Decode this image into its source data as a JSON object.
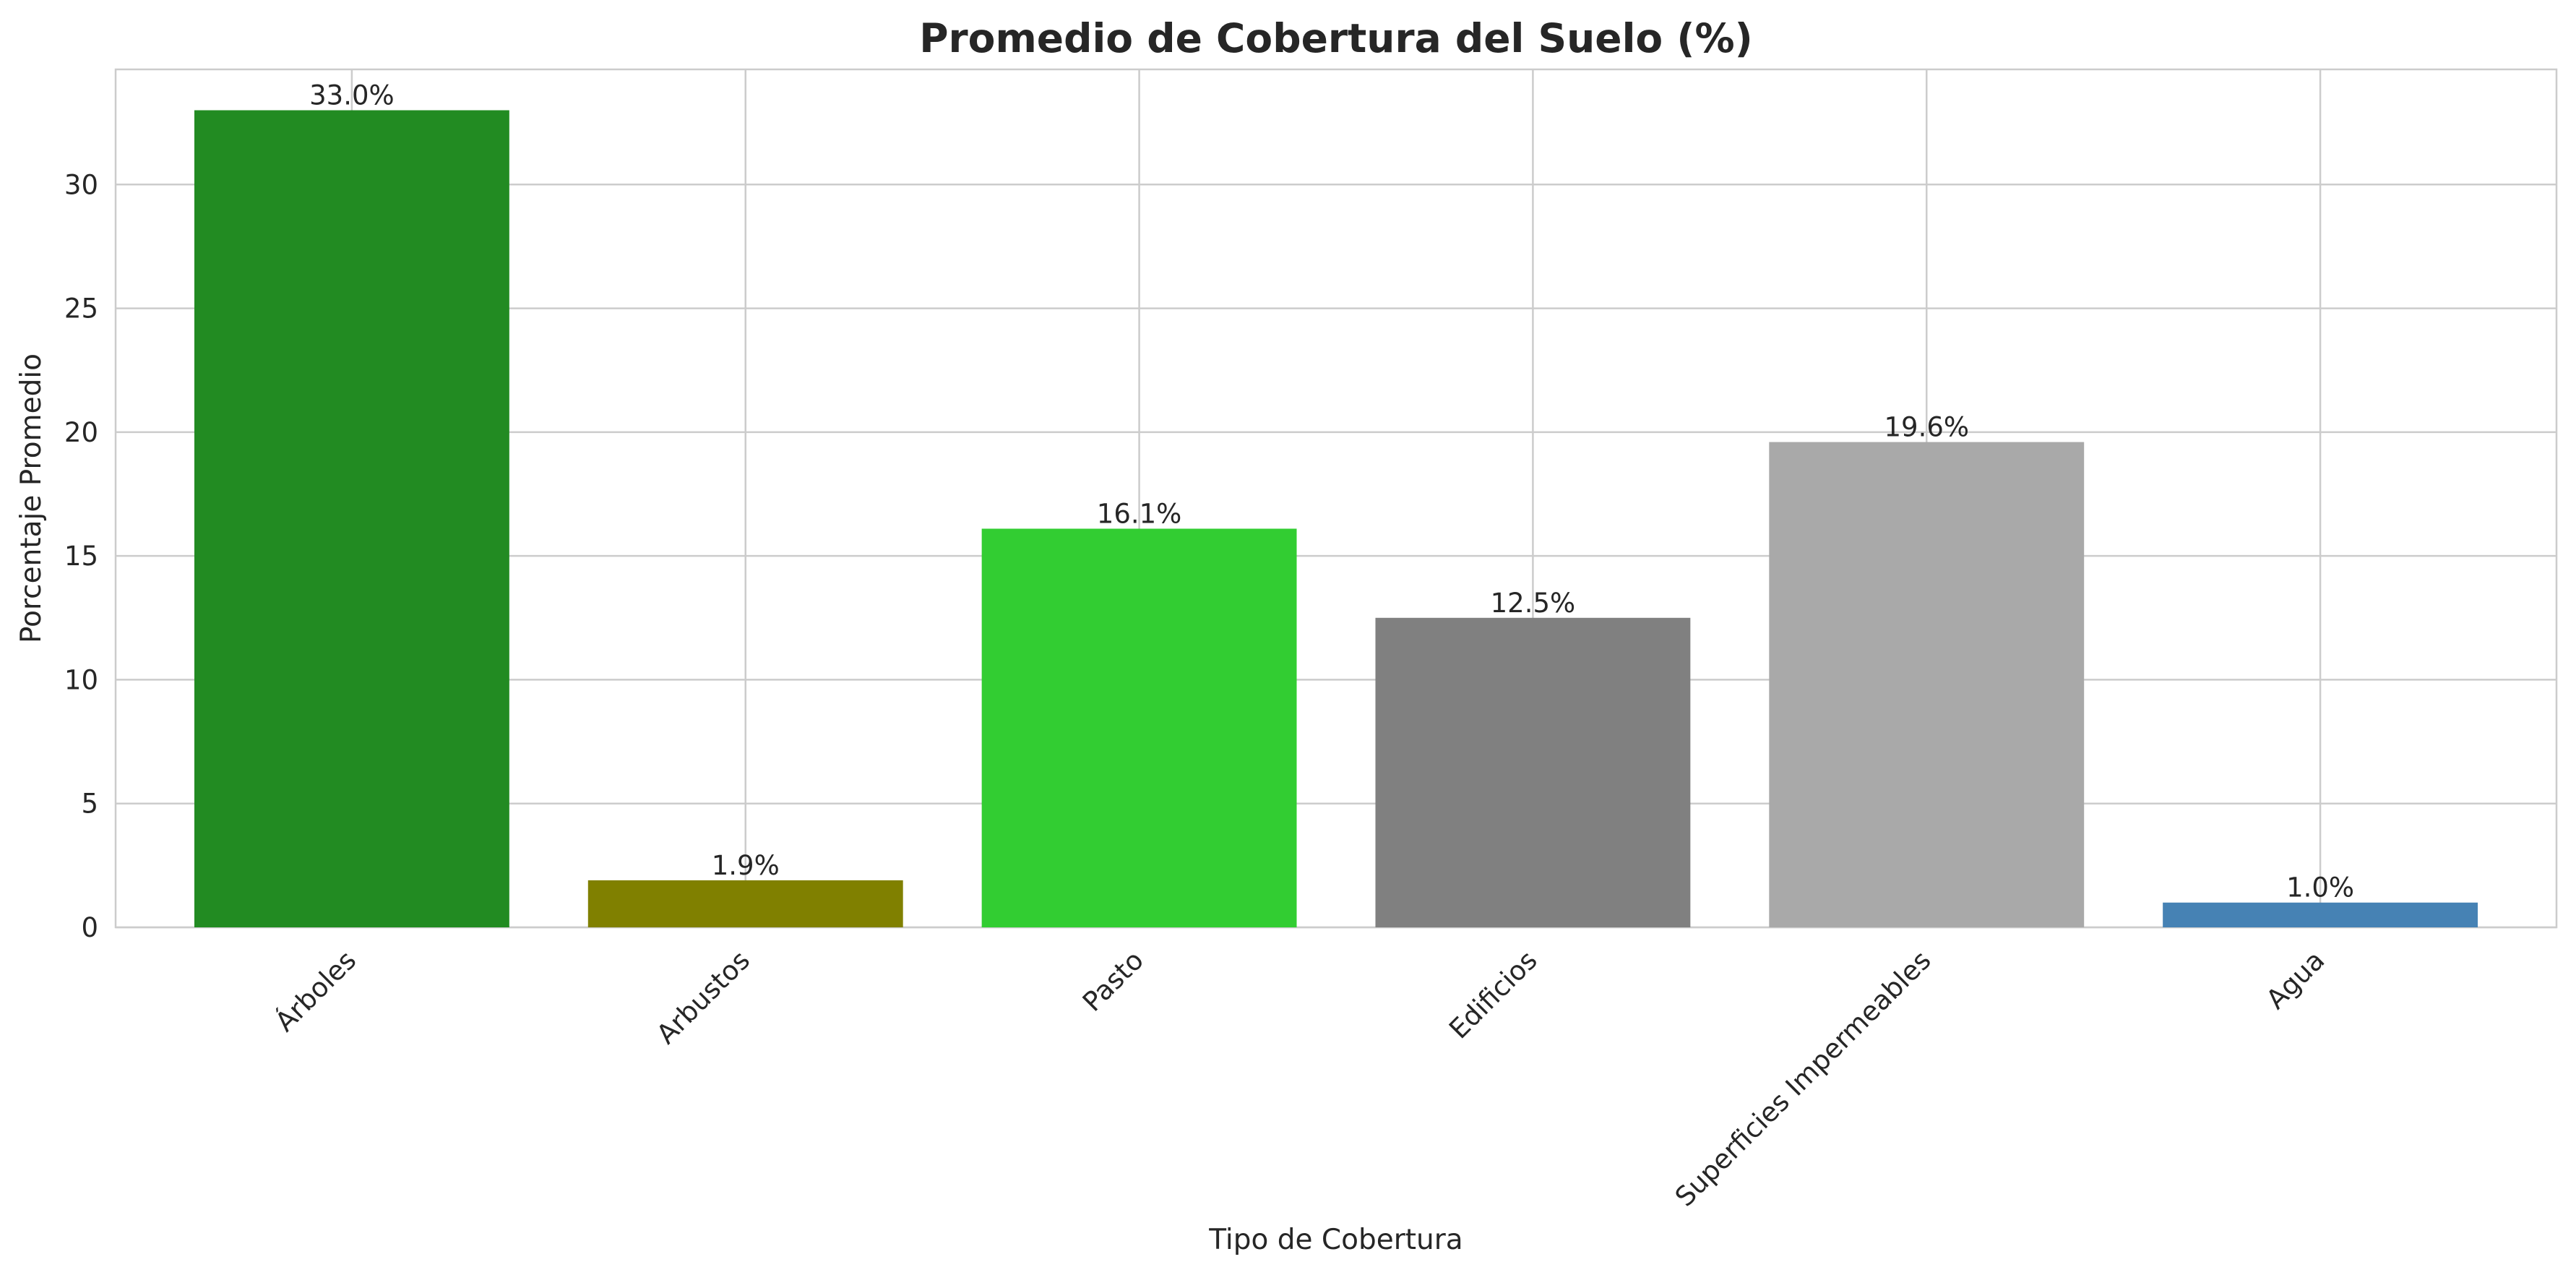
{
  "chart_data": {
    "type": "bar",
    "title": "Promedio de Cobertura del Suelo (%)",
    "xlabel": "Tipo de Cobertura",
    "ylabel": "Porcentaje Promedio",
    "categories": [
      "Árboles",
      "Arbustos",
      "Pasto",
      "Edificios",
      "Superficies Impermeables",
      "Agua"
    ],
    "values": [
      33.0,
      1.9,
      16.1,
      12.5,
      19.6,
      1.0
    ],
    "value_labels": [
      "33.0%",
      "1.9%",
      "16.1%",
      "12.5%",
      "19.6%",
      "1.0%"
    ],
    "colors": [
      "#228b22",
      "#808000",
      "#32cd32",
      "#808080",
      "#a9a9a9",
      "#4682b4"
    ],
    "ylim": [
      0,
      34.65
    ],
    "yticks": [
      0,
      5,
      10,
      15,
      20,
      25,
      30
    ],
    "ytick_labels": [
      "0",
      "5",
      "10",
      "15",
      "20",
      "25",
      "30"
    ],
    "grid": true,
    "legend": "none"
  }
}
